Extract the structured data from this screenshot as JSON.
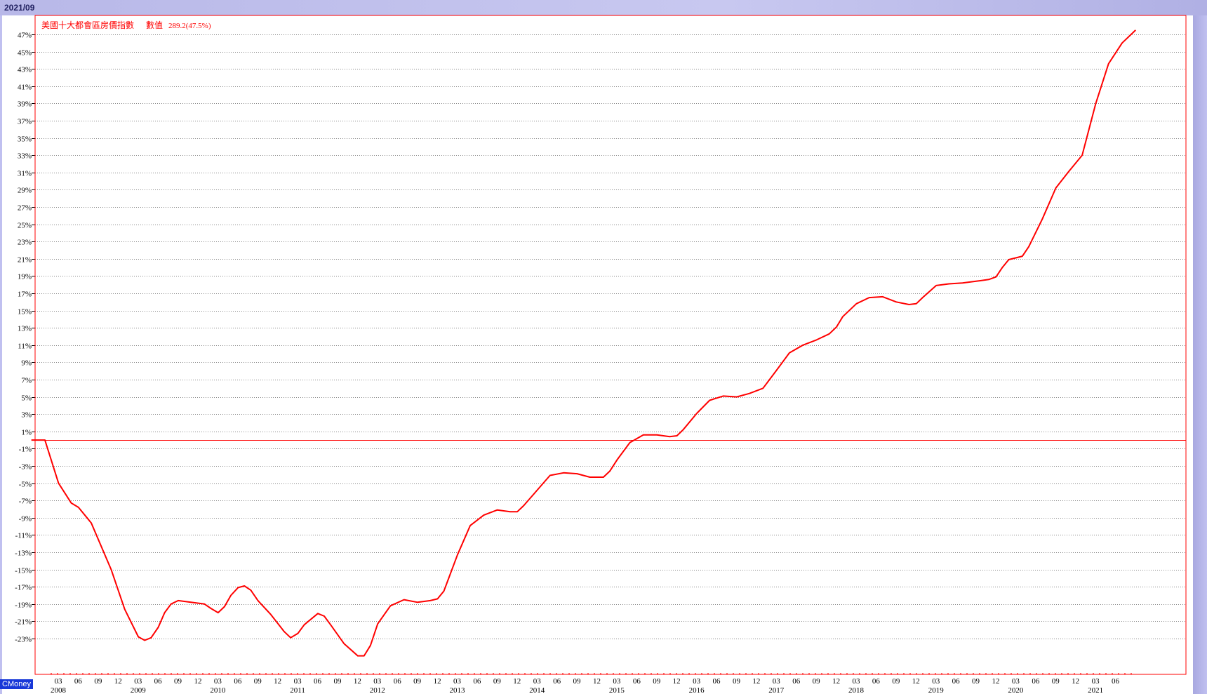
{
  "period_label": "2021/09",
  "brand_label": "CMoney",
  "legend": {
    "title": "美國十大都會區房價指數",
    "value_label": "數值",
    "value_text": "289.2(47.5%)"
  },
  "colors": {
    "line": "#ff0000",
    "axis": "#ff0000",
    "grid": "#888888",
    "text": "#000000",
    "brand": "#1838d8"
  },
  "chart_data": {
    "type": "line",
    "ylim": [
      -25,
      49
    ],
    "ytick_labels": [
      "47%",
      "45%",
      "43%",
      "41%",
      "39%",
      "37%",
      "35%",
      "33%",
      "31%",
      "29%",
      "27%",
      "25%",
      "23%",
      "21%",
      "19%",
      "17%",
      "15%",
      "13%",
      "11%",
      "9%",
      "7%",
      "5%",
      "3%",
      "1%",
      "-1%",
      "-3%",
      "-5%",
      "-7%",
      "-9%",
      "-11%",
      "-13%",
      "-15%",
      "-17%",
      "-19%",
      "-21%",
      "-23%"
    ],
    "ytick_values": [
      47,
      45,
      43,
      41,
      39,
      37,
      35,
      33,
      31,
      29,
      27,
      25,
      23,
      21,
      19,
      17,
      15,
      13,
      11,
      9,
      7,
      5,
      3,
      1,
      -1,
      -3,
      -5,
      -7,
      -9,
      -11,
      -13,
      -15,
      -17,
      -19,
      -21,
      -23
    ],
    "baseline": 0,
    "x_month_labels": [
      "03",
      "06",
      "09",
      "12"
    ],
    "x_year_labels": [
      "2008",
      "2009",
      "2010",
      "2011",
      "2012",
      "2013",
      "2014",
      "2015",
      "2016",
      "2017",
      "2018",
      "2019",
      "2020",
      "2021"
    ],
    "x_first_year": 2008,
    "x_last_year": 2021,
    "x_last_month_label": 6,
    "series": [
      {
        "values": [
          [
            2007.83,
            0.0
          ],
          [
            2008.0,
            0.0
          ],
          [
            2008.17,
            -5.0
          ],
          [
            2008.33,
            -7.3
          ],
          [
            2008.42,
            -7.8
          ],
          [
            2008.58,
            -9.6
          ],
          [
            2008.83,
            -15.0
          ],
          [
            2009.0,
            -19.6
          ],
          [
            2009.17,
            -22.8
          ],
          [
            2009.25,
            -23.2
          ],
          [
            2009.33,
            -22.9
          ],
          [
            2009.42,
            -21.7
          ],
          [
            2009.5,
            -20.0
          ],
          [
            2009.58,
            -19.0
          ],
          [
            2009.67,
            -18.6
          ],
          [
            2009.83,
            -18.8
          ],
          [
            2010.0,
            -19.0
          ],
          [
            2010.08,
            -19.5
          ],
          [
            2010.17,
            -20.0
          ],
          [
            2010.25,
            -19.3
          ],
          [
            2010.33,
            -18.0
          ],
          [
            2010.42,
            -17.1
          ],
          [
            2010.5,
            -16.9
          ],
          [
            2010.58,
            -17.4
          ],
          [
            2010.67,
            -18.6
          ],
          [
            2010.83,
            -20.2
          ],
          [
            2011.0,
            -22.2
          ],
          [
            2011.08,
            -22.9
          ],
          [
            2011.17,
            -22.4
          ],
          [
            2011.25,
            -21.4
          ],
          [
            2011.42,
            -20.1
          ],
          [
            2011.5,
            -20.4
          ],
          [
            2011.58,
            -21.4
          ],
          [
            2011.75,
            -23.6
          ],
          [
            2011.92,
            -25.0
          ],
          [
            2012.0,
            -25.0
          ],
          [
            2012.08,
            -23.8
          ],
          [
            2012.17,
            -21.3
          ],
          [
            2012.33,
            -19.2
          ],
          [
            2012.5,
            -18.5
          ],
          [
            2012.67,
            -18.8
          ],
          [
            2012.83,
            -18.6
          ],
          [
            2012.92,
            -18.4
          ],
          [
            2013.0,
            -17.5
          ],
          [
            2013.17,
            -13.3
          ],
          [
            2013.33,
            -9.9
          ],
          [
            2013.5,
            -8.7
          ],
          [
            2013.67,
            -8.1
          ],
          [
            2013.83,
            -8.3
          ],
          [
            2013.92,
            -8.3
          ],
          [
            2014.0,
            -7.6
          ],
          [
            2014.17,
            -5.8
          ],
          [
            2014.33,
            -4.1
          ],
          [
            2014.5,
            -3.8
          ],
          [
            2014.67,
            -3.9
          ],
          [
            2014.83,
            -4.3
          ],
          [
            2015.0,
            -4.3
          ],
          [
            2015.08,
            -3.6
          ],
          [
            2015.17,
            -2.3
          ],
          [
            2015.33,
            -0.3
          ],
          [
            2015.5,
            0.6
          ],
          [
            2015.67,
            0.6
          ],
          [
            2015.83,
            0.4
          ],
          [
            2015.92,
            0.5
          ],
          [
            2016.0,
            1.2
          ],
          [
            2016.17,
            3.1
          ],
          [
            2016.33,
            4.6
          ],
          [
            2016.5,
            5.1
          ],
          [
            2016.67,
            5.0
          ],
          [
            2016.83,
            5.4
          ],
          [
            2017.0,
            6.0
          ],
          [
            2017.17,
            8.1
          ],
          [
            2017.33,
            10.1
          ],
          [
            2017.5,
            11.0
          ],
          [
            2017.67,
            11.6
          ],
          [
            2017.83,
            12.3
          ],
          [
            2017.92,
            13.1
          ],
          [
            2018.0,
            14.3
          ],
          [
            2018.17,
            15.8
          ],
          [
            2018.33,
            16.5
          ],
          [
            2018.5,
            16.6
          ],
          [
            2018.67,
            16.0
          ],
          [
            2018.83,
            15.7
          ],
          [
            2018.92,
            15.8
          ],
          [
            2019.0,
            16.5
          ],
          [
            2019.17,
            17.9
          ],
          [
            2019.33,
            18.1
          ],
          [
            2019.5,
            18.2
          ],
          [
            2019.67,
            18.4
          ],
          [
            2019.83,
            18.6
          ],
          [
            2019.92,
            18.9
          ],
          [
            2020.0,
            20.0
          ],
          [
            2020.08,
            20.9
          ],
          [
            2020.25,
            21.3
          ],
          [
            2020.33,
            22.4
          ],
          [
            2020.5,
            25.6
          ],
          [
            2020.67,
            29.2
          ],
          [
            2020.83,
            31.1
          ],
          [
            2021.0,
            33.0
          ],
          [
            2021.17,
            39.0
          ],
          [
            2021.33,
            43.6
          ],
          [
            2021.5,
            46.0
          ],
          [
            2021.67,
            47.5
          ]
        ]
      }
    ]
  }
}
